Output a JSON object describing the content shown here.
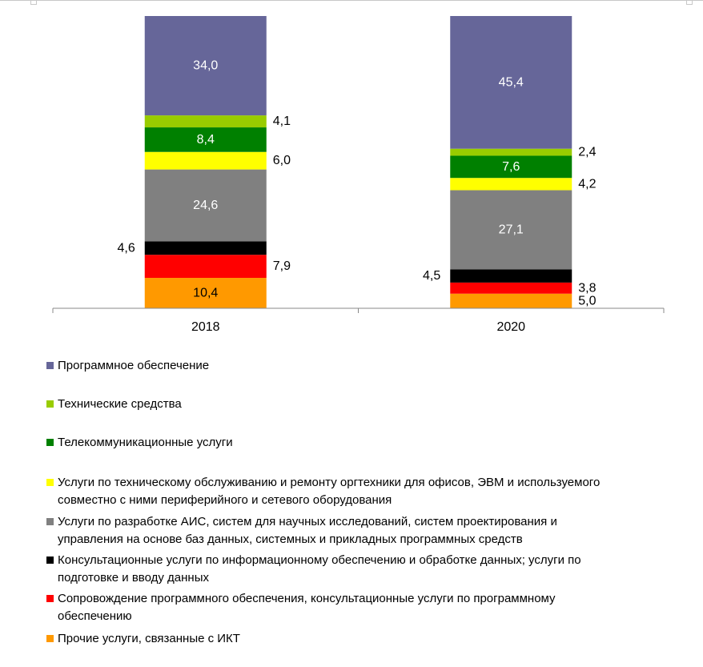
{
  "chart_data": {
    "type": "bar",
    "stacked": true,
    "categories": [
      "2018",
      "2020"
    ],
    "series": [
      {
        "name": "Прочие услуги, связанные с ИКТ",
        "color": "#FF9900",
        "values": [
          10.4,
          5.0
        ],
        "labels": [
          "10,4",
          "5,0"
        ]
      },
      {
        "name": "Сопровождение программного обеспечения, консультационные услуги по программному обеспечению",
        "color": "#FF0000",
        "values": [
          7.9,
          3.8
        ],
        "labels": [
          "7,9",
          "3,8"
        ]
      },
      {
        "name": "Консультационные услуги по информационному обеспечению и обработке данных; услуги по подготовке и вводу данных",
        "color": "#000000",
        "values": [
          4.6,
          4.5
        ],
        "labels": [
          "4,6",
          "4,5"
        ]
      },
      {
        "name": "Услуги по разработке АИС, систем для научных исследований, систем проектирования и управления на основе баз данных, системных и прикладных программных средств",
        "color": "#808080",
        "values": [
          24.6,
          27.1
        ],
        "labels": [
          "24,6",
          "27,1"
        ]
      },
      {
        "name": "Услуги по техническому обслуживанию и ремонту оргтехники для офисов, ЭВМ и используемого совместно с ними периферийного  и сетевого оборудования",
        "color": "#FFFF00",
        "values": [
          6.0,
          4.2
        ],
        "labels": [
          "6,0",
          "4,2"
        ]
      },
      {
        "name": "Телекоммуникационные услуги",
        "color": "#008000",
        "values": [
          8.4,
          7.6
        ],
        "labels": [
          "8,4",
          "7,6"
        ]
      },
      {
        "name": "Технические средства",
        "color": "#99CC00",
        "values": [
          4.1,
          2.4
        ],
        "labels": [
          "4,1",
          "2,4"
        ]
      },
      {
        "name": "Программное обеспечение",
        "color": "#666699",
        "values": [
          34.0,
          45.4
        ],
        "labels": [
          "34,0",
          "45,4"
        ]
      }
    ],
    "ylim": [
      0,
      100
    ],
    "grid": false,
    "legend_position": "bottom",
    "legend_order": [
      "Программное обеспечение",
      "Технические средства",
      "Телекоммуникационные услуги",
      "Услуги по техническому обслуживанию и ремонту оргтехники для офисов, ЭВМ и используемого совместно с ними периферийного  и сетевого оборудования",
      "Услуги по разработке АИС, систем для научных исследований, систем проектирования и управления на основе баз данных, системных и прикладных программных средств",
      "Консультационные услуги по информационному обеспечению и обработке данных; услуги по подготовке и вводу данных",
      "Сопровождение программного обеспечения, консультационные услуги по программному обеспечению",
      "Прочие услуги, связанные с ИКТ"
    ]
  },
  "legend": {
    "items": [
      {
        "lines": [
          "Программное обеспечение"
        ],
        "color": "#666699"
      },
      {
        "lines": [
          "Технические средства"
        ],
        "color": "#99CC00"
      },
      {
        "lines": [
          "Телекоммуникационные услуги"
        ],
        "color": "#008000"
      },
      {
        "lines": [
          "Услуги по техническому обслуживанию и ремонту оргтехники для офисов, ЭВМ и используемого",
          "совместно с ними периферийного  и сетевого оборудования"
        ],
        "color": "#FFFF00"
      },
      {
        "lines": [
          "Услуги по разработке АИС, систем для научных исследований, систем проектирования и",
          "управления на основе баз данных, системных и прикладных программных средств"
        ],
        "color": "#808080"
      },
      {
        "lines": [
          "Консультационные услуги по информационному обеспечению и обработке данных; услуги по",
          "подготовке и вводу данных"
        ],
        "color": "#000000"
      },
      {
        "lines": [
          "Сопровождение программного обеспечения, консультационные услуги по программному",
          "обеспечению"
        ],
        "color": "#FF0000"
      },
      {
        "lines": [
          "Прочие услуги, связанные с ИКТ"
        ],
        "color": "#FF9900"
      }
    ]
  }
}
